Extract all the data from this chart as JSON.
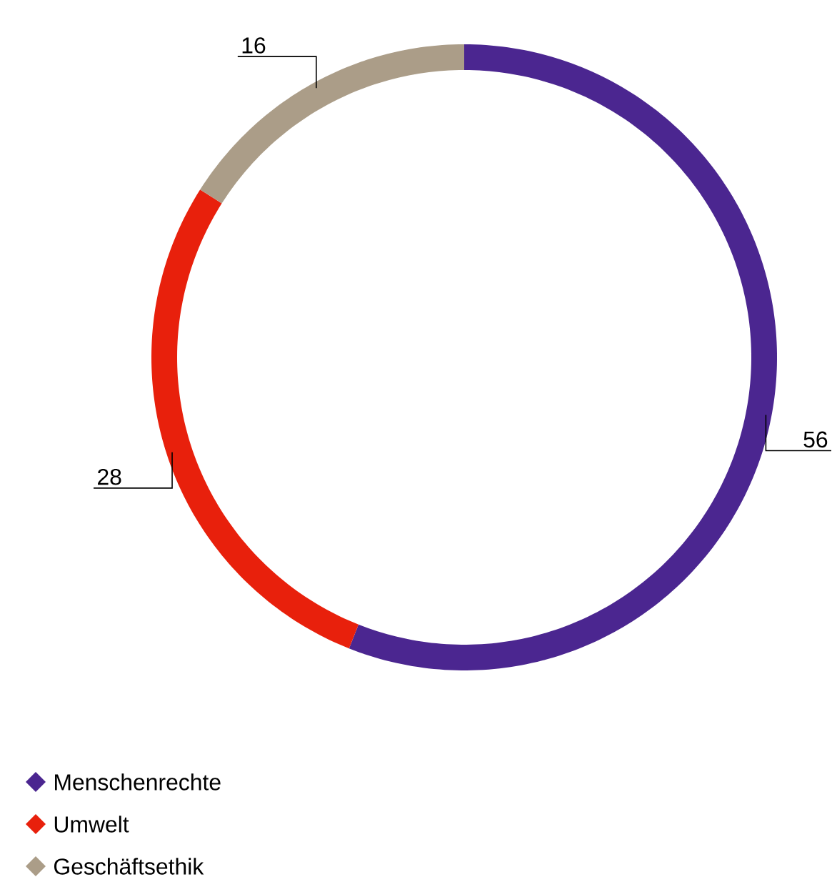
{
  "chart_data": {
    "type": "donut",
    "categories": [
      "Menschenrechte",
      "Umwelt",
      "Geschäftsethik"
    ],
    "values": [
      56,
      28,
      16
    ],
    "colors": [
      "#4b2690",
      "#e8200c",
      "#ab9d88"
    ],
    "data_labels": true,
    "legend": "bottom left"
  }
}
